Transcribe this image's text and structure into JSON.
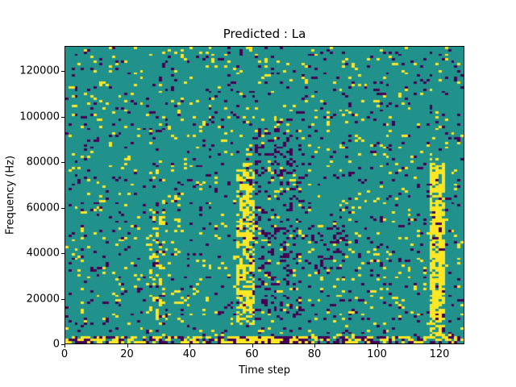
{
  "figure": {
    "background": "#ffffff"
  },
  "chart_data": {
    "type": "heatmap",
    "title": "Predicted : La",
    "xlabel": "Time step",
    "ylabel": "Frequency (Hz)",
    "x_range": [
      0,
      128
    ],
    "y_range": [
      0,
      131072
    ],
    "x_ticks": [
      0,
      20,
      40,
      60,
      80,
      100,
      120
    ],
    "y_ticks": [
      0,
      20000,
      40000,
      60000,
      80000,
      100000,
      120000
    ],
    "grid": {
      "cols": 128,
      "rows": 128
    },
    "colors": {
      "background": "#21918c",
      "high": "#fde725",
      "low": "#440154",
      "axes": "#000000"
    },
    "base_density": {
      "high": 0.045,
      "low": 0.05
    },
    "seed": 7,
    "features": [
      {
        "name": "bottom-activity-band",
        "x": [
          0,
          128
        ],
        "freq": [
          0,
          3000
        ],
        "p_high": 0.4,
        "p_low": 0.3
      },
      {
        "name": "bottom-yellow-burst-t55-78",
        "x": [
          53,
          78
        ],
        "freq": [
          0,
          3000
        ],
        "p_high": 0.7,
        "p_low": 0.2
      },
      {
        "name": "bottom-yellow-burst-t92-118",
        "x": [
          92,
          118
        ],
        "freq": [
          0,
          3000
        ],
        "p_high": 0.5,
        "p_low": 0.2
      },
      {
        "name": "yellow-band-t57",
        "x": [
          55,
          61
        ],
        "freq": [
          8000,
          80000
        ],
        "p_high": 0.55,
        "p_low": 0.05
      },
      {
        "name": "yellow-band-t119",
        "x": [
          117,
          122
        ],
        "freq": [
          3000,
          80000
        ],
        "p_high": 0.75,
        "p_low": 0.04
      },
      {
        "name": "dark-cluster-t62-75",
        "x": [
          61,
          76
        ],
        "freq": [
          10000,
          95000
        ],
        "p_high": 0.05,
        "p_low": 0.2
      },
      {
        "name": "dark-cluster-t80-90",
        "x": [
          78,
          90
        ],
        "freq": [
          33000,
          52000
        ],
        "p_high": 0.05,
        "p_low": 0.2
      },
      {
        "name": "yellow-scatter-t28",
        "x": [
          27,
          32
        ],
        "freq": [
          10000,
          62000
        ],
        "p_high": 0.2,
        "p_low": 0.06
      }
    ]
  }
}
